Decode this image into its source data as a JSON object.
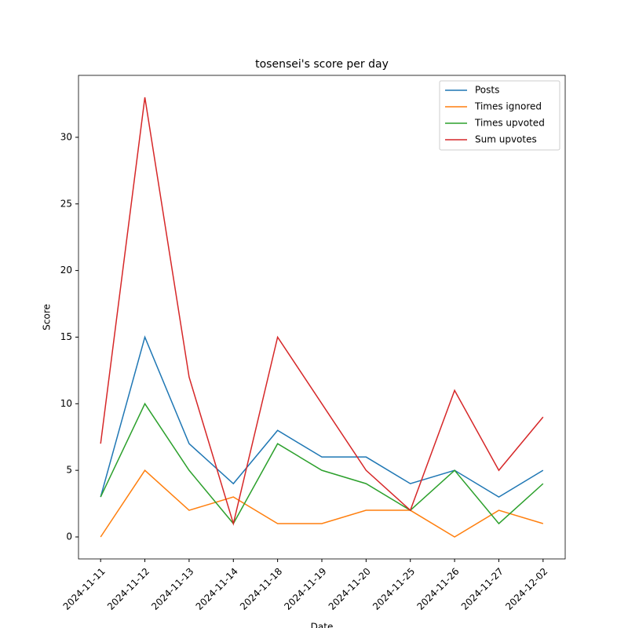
{
  "chart_data": {
    "type": "line",
    "title": "tosensei's score per day",
    "xlabel": "Date",
    "ylabel": "Score",
    "categories": [
      "2024-11-11",
      "2024-11-12",
      "2024-11-13",
      "2024-11-14",
      "2024-11-18",
      "2024-11-19",
      "2024-11-20",
      "2024-11-25",
      "2024-11-26",
      "2024-11-27",
      "2024-12-02"
    ],
    "series": [
      {
        "name": "Posts",
        "color": "#1f77b4",
        "values": [
          3,
          15,
          7,
          4,
          8,
          6,
          6,
          4,
          5,
          3,
          5
        ]
      },
      {
        "name": "Times ignored",
        "color": "#ff7f0e",
        "values": [
          0,
          5,
          2,
          3,
          1,
          1,
          2,
          2,
          0,
          2,
          1
        ]
      },
      {
        "name": "Times upvoted",
        "color": "#2ca02c",
        "values": [
          3,
          10,
          5,
          1,
          7,
          5,
          4,
          2,
          5,
          1,
          4
        ]
      },
      {
        "name": "Sum upvotes",
        "color": "#d62728",
        "values": [
          7,
          33,
          12,
          1,
          15,
          10,
          5,
          2,
          11,
          5,
          9
        ]
      }
    ],
    "ylim": [
      -1.65,
      34.65
    ],
    "yticks": [
      0,
      5,
      10,
      15,
      20,
      25,
      30
    ],
    "grid": false,
    "legend": "upper right"
  }
}
